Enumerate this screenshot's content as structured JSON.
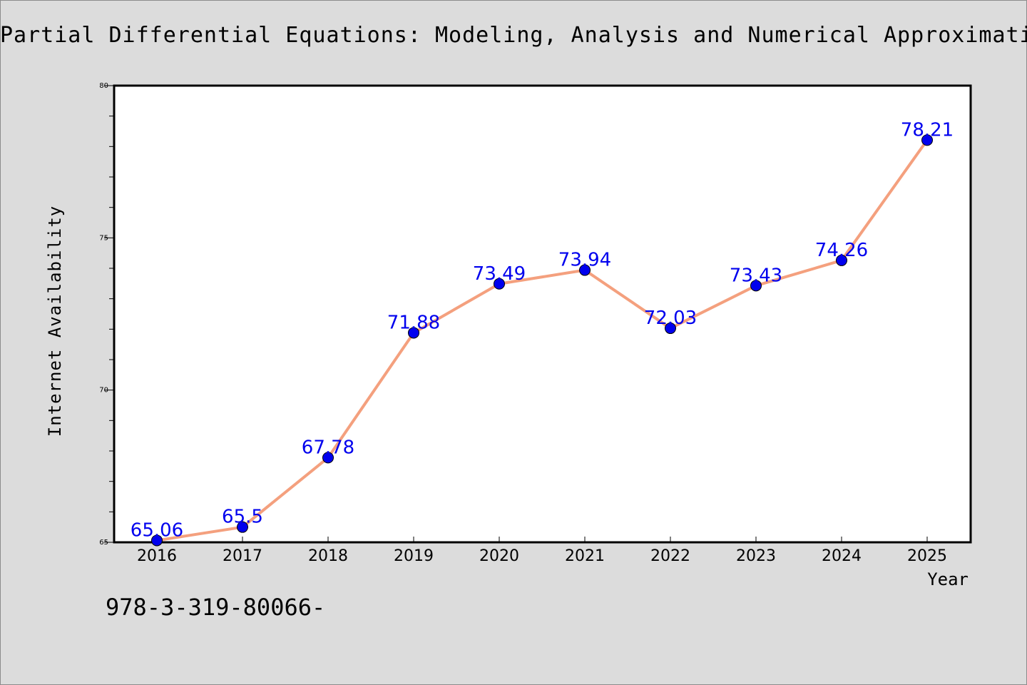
{
  "chart_data": {
    "type": "line",
    "title": "Partial Differential Equations: Modeling, Analysis and Numerical Approximation",
    "xlabel": "Year",
    "ylabel": "Internet Availability",
    "categories": [
      "2016",
      "2017",
      "2018",
      "2019",
      "2020",
      "2021",
      "2022",
      "2023",
      "2024",
      "2025"
    ],
    "values": [
      65.06,
      65.5,
      67.78,
      71.88,
      73.49,
      73.94,
      72.03,
      73.43,
      74.26,
      78.21
    ],
    "data_labels": [
      "65.06",
      "65.5",
      "67.78",
      "71.88",
      "73.49",
      "73.94",
      "72.03",
      "73.43",
      "74.26",
      "78.21"
    ],
    "ylim": [
      65,
      80
    ],
    "yticks": [
      "65",
      "70",
      "75",
      "80"
    ],
    "grid": false,
    "legend": "none",
    "colors": {
      "line": "#f4a07e",
      "marker": "#0000ee",
      "label": "#0000ee",
      "background": "#dcdcdc",
      "plot_background": "#ffffff"
    }
  },
  "footer": {
    "isbn": "978-3-319-80066-"
  }
}
